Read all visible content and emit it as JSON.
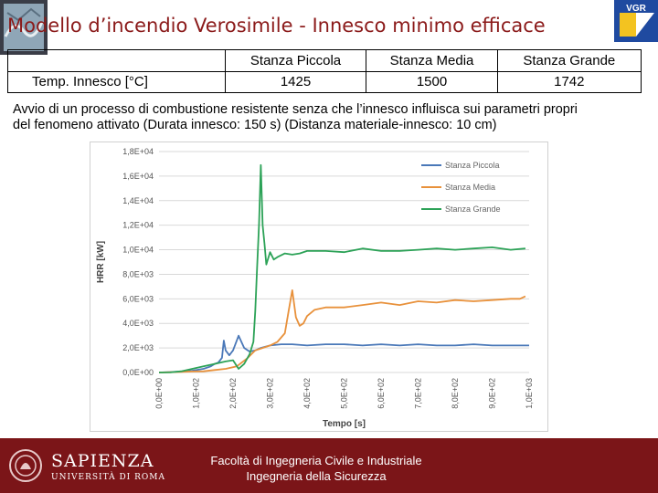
{
  "title": "Modello d’incendio Verosimile  -  Innesco minimo efficace",
  "logo_text": "VGR",
  "table": {
    "headers": [
      "",
      "Stanza Piccola",
      "Stanza Media",
      "Stanza Grande"
    ],
    "row_label": "Temp. Innesco [°C]",
    "values": [
      "1425",
      "1500",
      "1742"
    ]
  },
  "description_line1": "Avvio di un processo di combustione resistente senza che l’innesco influisca sui parametri propri",
  "description_line2": "del fenomeno attivato (Durata innesco: 150 s) (Distanza materiale-innesco: 10 cm)",
  "footer": {
    "brand": "SAPIENZA",
    "brand_sub": "UNIVERSITÀ DI ROMA",
    "faculty_line1": "Facoltà di Ingegneria Civile e Industriale",
    "faculty_line2": "Ingegneria della Sicurezza"
  },
  "chart_data": {
    "type": "line",
    "xlabel": "Tempo [s]",
    "ylabel": "HRR [kW]",
    "xlim": [
      0,
      1000
    ],
    "ylim": [
      0,
      18000
    ],
    "x_tick_labels": [
      "0,0E+00",
      "1,0E+02",
      "2,0E+02",
      "3,0E+02",
      "4,0E+02",
      "5,0E+02",
      "6,0E+02",
      "7,0E+02",
      "8,0E+02",
      "9,0E+02",
      "1,0E+03"
    ],
    "x_ticks": [
      0,
      100,
      200,
      300,
      400,
      500,
      600,
      700,
      800,
      900,
      1000
    ],
    "y_tick_labels": [
      "0,0E+00",
      "2,0E+03",
      "4,0E+03",
      "6,0E+03",
      "8,0E+03",
      "1,0E+04",
      "1,2E+04",
      "1,4E+04",
      "1,6E+04",
      "1,8E+04"
    ],
    "y_ticks": [
      0,
      2000,
      4000,
      6000,
      8000,
      10000,
      12000,
      14000,
      16000,
      18000
    ],
    "legend_position": "top-right",
    "series": [
      {
        "name": "Stanza Piccola",
        "color": "#4a78b8",
        "x": [
          0,
          30,
          60,
          90,
          120,
          140,
          150,
          160,
          170,
          175,
          180,
          190,
          200,
          215,
          230,
          245,
          260,
          275,
          300,
          330,
          360,
          400,
          450,
          500,
          550,
          600,
          650,
          700,
          750,
          800,
          850,
          900,
          950,
          1000
        ],
        "y": [
          0,
          40,
          80,
          150,
          300,
          500,
          700,
          800,
          1200,
          2600,
          1800,
          1400,
          1800,
          3000,
          2000,
          1700,
          1800,
          2000,
          2200,
          2300,
          2300,
          2200,
          2300,
          2300,
          2200,
          2300,
          2200,
          2300,
          2200,
          2200,
          2300,
          2200,
          2200,
          2200
        ]
      },
      {
        "name": "Stanza Media",
        "color": "#e8913b",
        "x": [
          0,
          30,
          60,
          90,
          120,
          150,
          180,
          210,
          240,
          260,
          280,
          300,
          320,
          340,
          350,
          360,
          370,
          380,
          390,
          400,
          420,
          450,
          500,
          550,
          600,
          650,
          700,
          750,
          800,
          850,
          900,
          950,
          975,
          990
        ],
        "y": [
          0,
          20,
          50,
          80,
          100,
          200,
          300,
          500,
          1200,
          1800,
          2000,
          2200,
          2500,
          3200,
          5000,
          6700,
          4500,
          3800,
          4000,
          4600,
          5100,
          5300,
          5300,
          5500,
          5700,
          5500,
          5800,
          5700,
          5900,
          5800,
          5900,
          6000,
          6000,
          6200
        ]
      },
      {
        "name": "Stanza Grande",
        "color": "#2ca257",
        "x": [
          0,
          30,
          60,
          90,
          120,
          150,
          180,
          200,
          215,
          230,
          245,
          255,
          260,
          265,
          270,
          275,
          280,
          285,
          290,
          300,
          310,
          320,
          340,
          360,
          380,
          400,
          450,
          500,
          550,
          600,
          650,
          700,
          750,
          800,
          850,
          900,
          950,
          990
        ],
        "y": [
          0,
          10,
          100,
          300,
          500,
          700,
          900,
          1000,
          300,
          700,
          1500,
          2500,
          5000,
          8500,
          12000,
          16900,
          12000,
          10500,
          8800,
          9800,
          9200,
          9400,
          9700,
          9600,
          9700,
          9900,
          9900,
          9800,
          10100,
          9900,
          9900,
          10000,
          10100,
          10000,
          10100,
          10200,
          10000,
          10100
        ]
      }
    ]
  }
}
